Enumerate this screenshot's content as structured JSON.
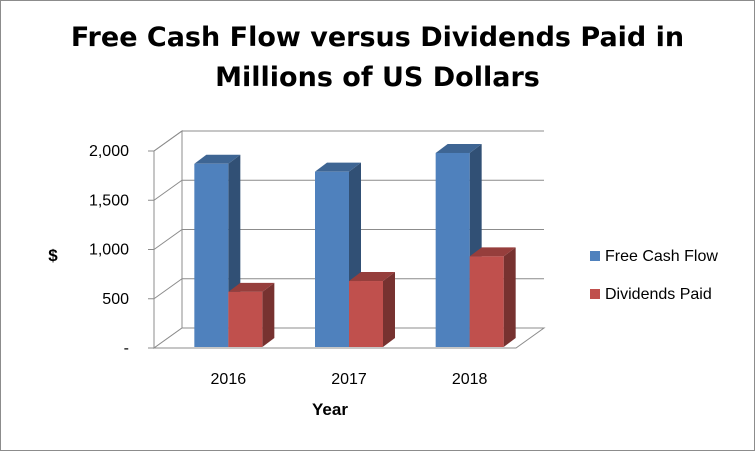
{
  "chart_data": {
    "type": "bar",
    "title_lines": [
      "Free Cash Flow versus Dividends Paid in",
      "Millions of US Dollars"
    ],
    "xlabel": "Year",
    "ylabel": "$",
    "categories": [
      "2016",
      "2017",
      "2018"
    ],
    "series": [
      {
        "name": "Free Cash Flow",
        "values": [
          1870,
          1790,
          1980
        ],
        "color": "#4f81bd"
      },
      {
        "name": "Dividends Paid",
        "values": [
          570,
          680,
          930
        ],
        "color": "#c0504d"
      }
    ],
    "ylim": [
      0,
      2000
    ],
    "ytick_labels": [
      "-",
      "500",
      "1,000",
      "1,500",
      "2,000"
    ],
    "grid": true,
    "legend_position": "right",
    "style": "3d-clustered-column"
  }
}
